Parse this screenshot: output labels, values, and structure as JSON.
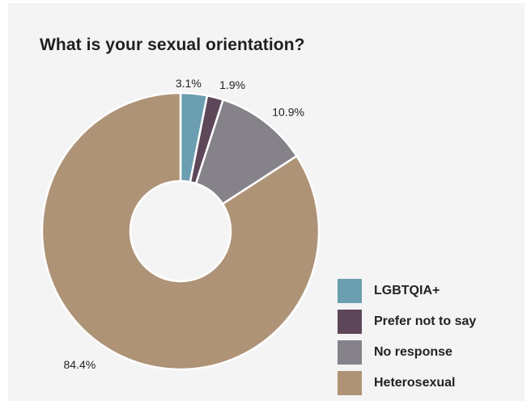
{
  "chart_data": {
    "type": "pie",
    "style": "donut",
    "title": "What is your sexual orientation?",
    "slices": [
      {
        "label": "LGBTQIA+",
        "value": 3.1,
        "display": "3.1%",
        "color": "#6b9eb0"
      },
      {
        "label": "Prefer not to say",
        "value": 1.9,
        "display": "1.9%",
        "color": "#5e4759"
      },
      {
        "label": "No response",
        "value": 10.9,
        "display": "10.9%",
        "color": "#86828a"
      },
      {
        "label": "Heterosexual",
        "value": 84.4,
        "display": "84.4%",
        "color": "#af9377"
      }
    ],
    "legend_position": "bottom-right"
  }
}
